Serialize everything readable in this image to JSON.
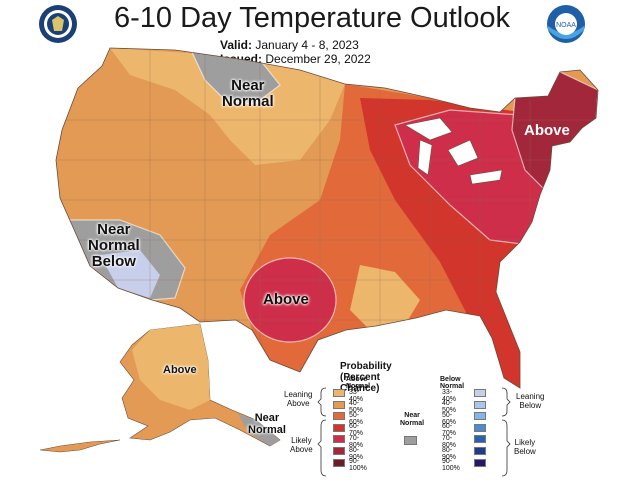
{
  "title": "6-10 Day Temperature Outlook",
  "valid_label": "Valid:",
  "valid_value": "January 4 - 8, 2023",
  "issued_label": "Issued:",
  "issued_value": "December 29, 2022",
  "map_labels": {
    "near_normal_north_1": "Near",
    "near_normal_north_2": "Normal",
    "near_normal_west_1": "Near",
    "near_normal_west_2": "Normal",
    "below_west": "Below",
    "above_south": "Above",
    "above_northeast": "Above",
    "above_alaska": "Above",
    "near_normal_alaska_1": "Near",
    "near_normal_alaska_2": "Normal"
  },
  "legend": {
    "title": "Probability (Percent Chance)",
    "above_header": "Above Normal",
    "below_header": "Below Normal",
    "near_header_1": "Near",
    "near_header_2": "Normal",
    "leaning_above_1": "Leaning",
    "leaning_above_2": "Above",
    "likely_above_1": "Likely",
    "likely_above_2": "Above",
    "leaning_below_1": "Leaning",
    "leaning_below_2": "Below",
    "likely_below_1": "Likely",
    "likely_below_2": "Below",
    "ranges": [
      "33-40%",
      "40-50%",
      "50-60%",
      "60-70%",
      "70-80%",
      "80-90%",
      "90-100%"
    ],
    "ranges_below": [
      "33-40%",
      "40-50%",
      "50-60%",
      "60-70%",
      "70-80%",
      "80-90%",
      "90-100%"
    ]
  },
  "colors": {
    "above": [
      "#ecb76c",
      "#e39a55",
      "#e2693a",
      "#d1352b",
      "#cf2e4a",
      "#a3273a",
      "#6b1c24"
    ],
    "below": [
      "#c8cfeb",
      "#a8c8ea",
      "#86b6e2",
      "#4b8ccd",
      "#2a62b0",
      "#1c3e8a",
      "#231a6b"
    ],
    "near": "#9e9e9e",
    "state_lines": "#8a6a55"
  },
  "seals": {
    "left_icon": "commerce-seal-icon",
    "right_icon": "noaa-logo-icon",
    "right_text": "NOAA"
  }
}
